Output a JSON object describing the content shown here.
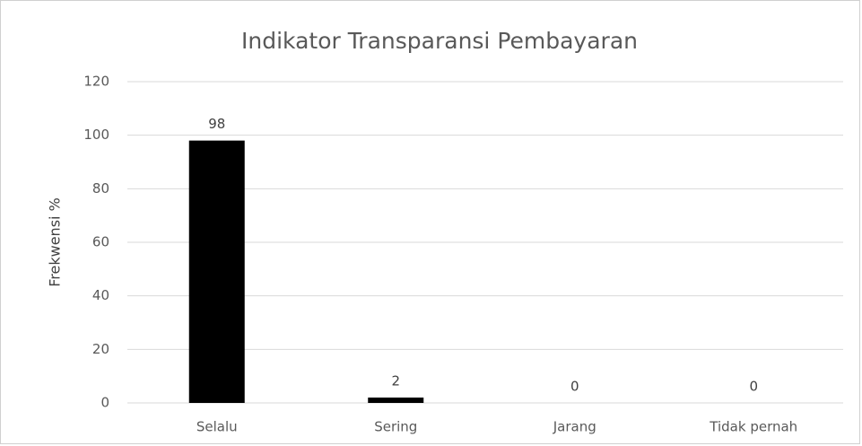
{
  "chart_data": {
    "type": "bar",
    "title": "Indikator Transparansi Pembayaran",
    "y_label": "Frekwensi %",
    "categories": [
      "Selalu",
      "Sering",
      "Jarang",
      "Tidak pernah"
    ],
    "values": [
      98,
      2,
      0,
      0
    ],
    "color": "#000000",
    "ylim": [
      0,
      120
    ],
    "yticks": [
      0,
      20,
      40,
      60,
      80,
      100,
      120
    ],
    "grid": true
  }
}
